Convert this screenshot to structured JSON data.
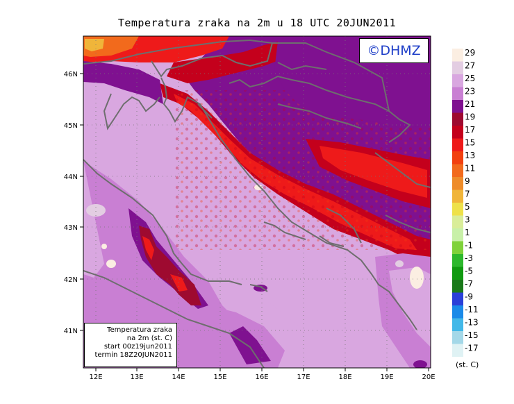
{
  "title": "Temperatura zraka na 2m u 18 UTC 20JUN2011",
  "watermark": "©DHMZ",
  "info_box": [
    "Temperatura zraka",
    "na 2m (st. C)",
    "start 00z19jun2011",
    "termin 18Z20JUN2011"
  ],
  "x_ticks": [
    "12E",
    "13E",
    "14E",
    "15E",
    "16E",
    "17E",
    "18E",
    "19E",
    "20E"
  ],
  "y_ticks": [
    "46N",
    "45N",
    "44N",
    "43N",
    "42N",
    "41N"
  ],
  "legend": {
    "labels": [
      "29",
      "27",
      "25",
      "23",
      "21",
      "19",
      "17",
      "15",
      "13",
      "11",
      "9",
      "7",
      "5",
      "3",
      "1",
      "-1",
      "-3",
      "-5",
      "-7",
      "-9",
      "-11",
      "-13",
      "-15",
      "-17"
    ],
    "colors": [
      "#fbeee2",
      "#e3cde2",
      "#d9a7e0",
      "#c97fd3",
      "#7f1190",
      "#9e0a30",
      "#c4001c",
      "#ee1a1a",
      "#f2400f",
      "#f26a1c",
      "#ee8c2a",
      "#f0b53a",
      "#eee14a",
      "#d9ed99",
      "#c8f0a8",
      "#7fd23a",
      "#2db82d",
      "#109a10",
      "#1a7a1a",
      "#2a3fd8",
      "#1a8ae8",
      "#42b8e8",
      "#a4d8e8",
      "#dff2f4"
    ],
    "units": "(st. C)"
  }
}
